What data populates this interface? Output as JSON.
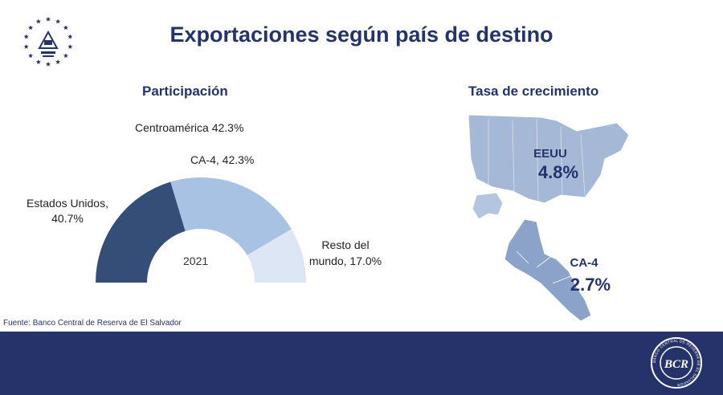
{
  "slide": {
    "title": "Exportaciones según país de destino",
    "source": "Fuente: Banco Central de Reserva de El Salvador"
  },
  "participation": {
    "title": "Participación",
    "headline": "Centroamérica 42.3%",
    "year_label": "2021"
  },
  "growth": {
    "title": "Tasa de crecimiento",
    "regions": [
      {
        "name": "EEUU",
        "rate": "4.8%"
      },
      {
        "name": "CA-4",
        "rate": "2.7%"
      }
    ]
  },
  "chart_data": {
    "type": "pie",
    "variant": "half-donut",
    "title": "Participación",
    "year": "2021",
    "slices": [
      {
        "label": "Estados Unidos, 40.7%",
        "name": "Estados Unidos",
        "value": 40.7,
        "color": "#344e77"
      },
      {
        "label": "CA-4, 42.3%",
        "name": "CA-4",
        "value": 42.3,
        "color": "#a8c2e4"
      },
      {
        "label": "Resto del mundo, 17.0%",
        "name": "Resto del mundo",
        "value": 17.0,
        "color": "#dce6f4"
      }
    ]
  },
  "colors": {
    "brand_navy": "#25336a",
    "title_navy": "#24336b",
    "map_usa": "#a5b8d6",
    "map_ca": "#8ba3c8"
  },
  "icons": {
    "top_left_logo": "el-salvador-coat-of-arms-seal",
    "footer_logo": "bcr-seal"
  },
  "footer_logo": {
    "text": "BANCO CENTRAL DE RESERVA DE EL SALVADOR",
    "initials": "BCR"
  }
}
